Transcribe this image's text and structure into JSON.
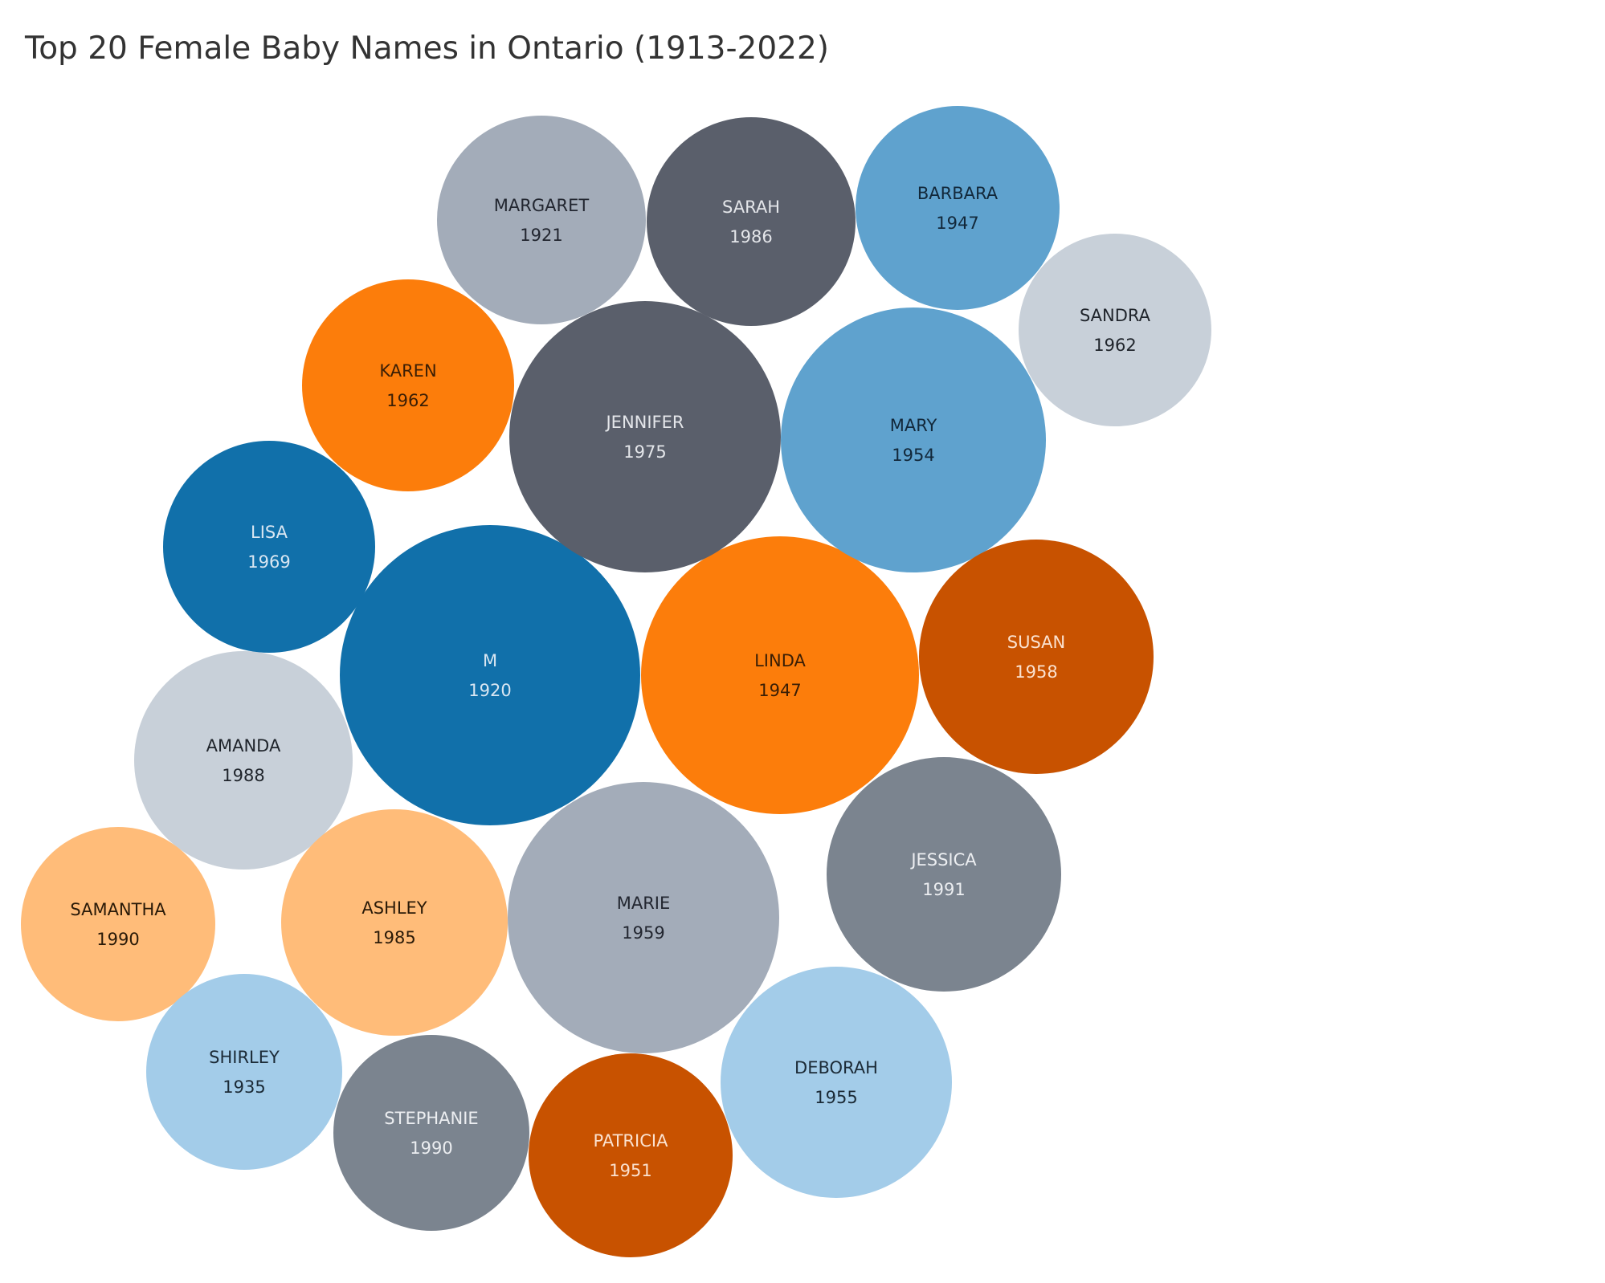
{
  "title": "Top 20 Female Baby Names in Ontario (1913-2022)",
  "chart_data": {
    "type": "bubble",
    "title": "Top 20 Female Baby Names in Ontario (1913-2022)",
    "bubbles": [
      {
        "name": "M",
        "year": "1920",
        "color": "#1170aa",
        "label_color": "#d9e6f2"
      },
      {
        "name": "LINDA",
        "year": "1947",
        "color": "#fc7d0b",
        "label_color": "#3a1e05"
      },
      {
        "name": "JENNIFER",
        "year": "1975",
        "color": "#5a5f6b",
        "label_color": "#e4e6ea"
      },
      {
        "name": "MARIE",
        "year": "1959",
        "color": "#a3acb9",
        "label_color": "#222630"
      },
      {
        "name": "MARY",
        "year": "1954",
        "color": "#5fa2ce",
        "label_color": "#12283a"
      },
      {
        "name": "SUSAN",
        "year": "1958",
        "color": "#c85200",
        "label_color": "#fbe2d0"
      },
      {
        "name": "JESSICA",
        "year": "1991",
        "color": "#7b848f",
        "label_color": "#eceef1"
      },
      {
        "name": "DEBORAH",
        "year": "1955",
        "color": "#a3cce9",
        "label_color": "#1b2a36"
      },
      {
        "name": "AMANDA",
        "year": "1988",
        "color": "#c8d0d9",
        "label_color": "#1f242b"
      },
      {
        "name": "ASHLEY",
        "year": "1985",
        "color": "#ffbc79",
        "label_color": "#2a1a08"
      },
      {
        "name": "KAREN",
        "year": "1962",
        "color": "#fc7d0b",
        "label_color": "#3a1e05"
      },
      {
        "name": "MARGARET",
        "year": "1921",
        "color": "#a3acb9",
        "label_color": "#222630"
      },
      {
        "name": "SARAH",
        "year": "1986",
        "color": "#5a5f6b",
        "label_color": "#e4e6ea"
      },
      {
        "name": "LISA",
        "year": "1969",
        "color": "#1170aa",
        "label_color": "#d9e6f2"
      },
      {
        "name": "BARBARA",
        "year": "1947",
        "color": "#5fa2ce",
        "label_color": "#12283a"
      },
      {
        "name": "PATRICIA",
        "year": "1951",
        "color": "#c85200",
        "label_color": "#fbe2d0"
      },
      {
        "name": "STEPHANIE",
        "year": "1990",
        "color": "#7b848f",
        "label_color": "#eceef1"
      },
      {
        "name": "SAMANTHA",
        "year": "1990",
        "color": "#ffbc79",
        "label_color": "#2a1a08"
      },
      {
        "name": "SHIRLEY",
        "year": "1935",
        "color": "#a3cce9",
        "label_color": "#1b2a36"
      },
      {
        "name": "SANDRA",
        "year": "1962",
        "color": "#c8d0d9",
        "label_color": "#1f242b"
      }
    ]
  }
}
